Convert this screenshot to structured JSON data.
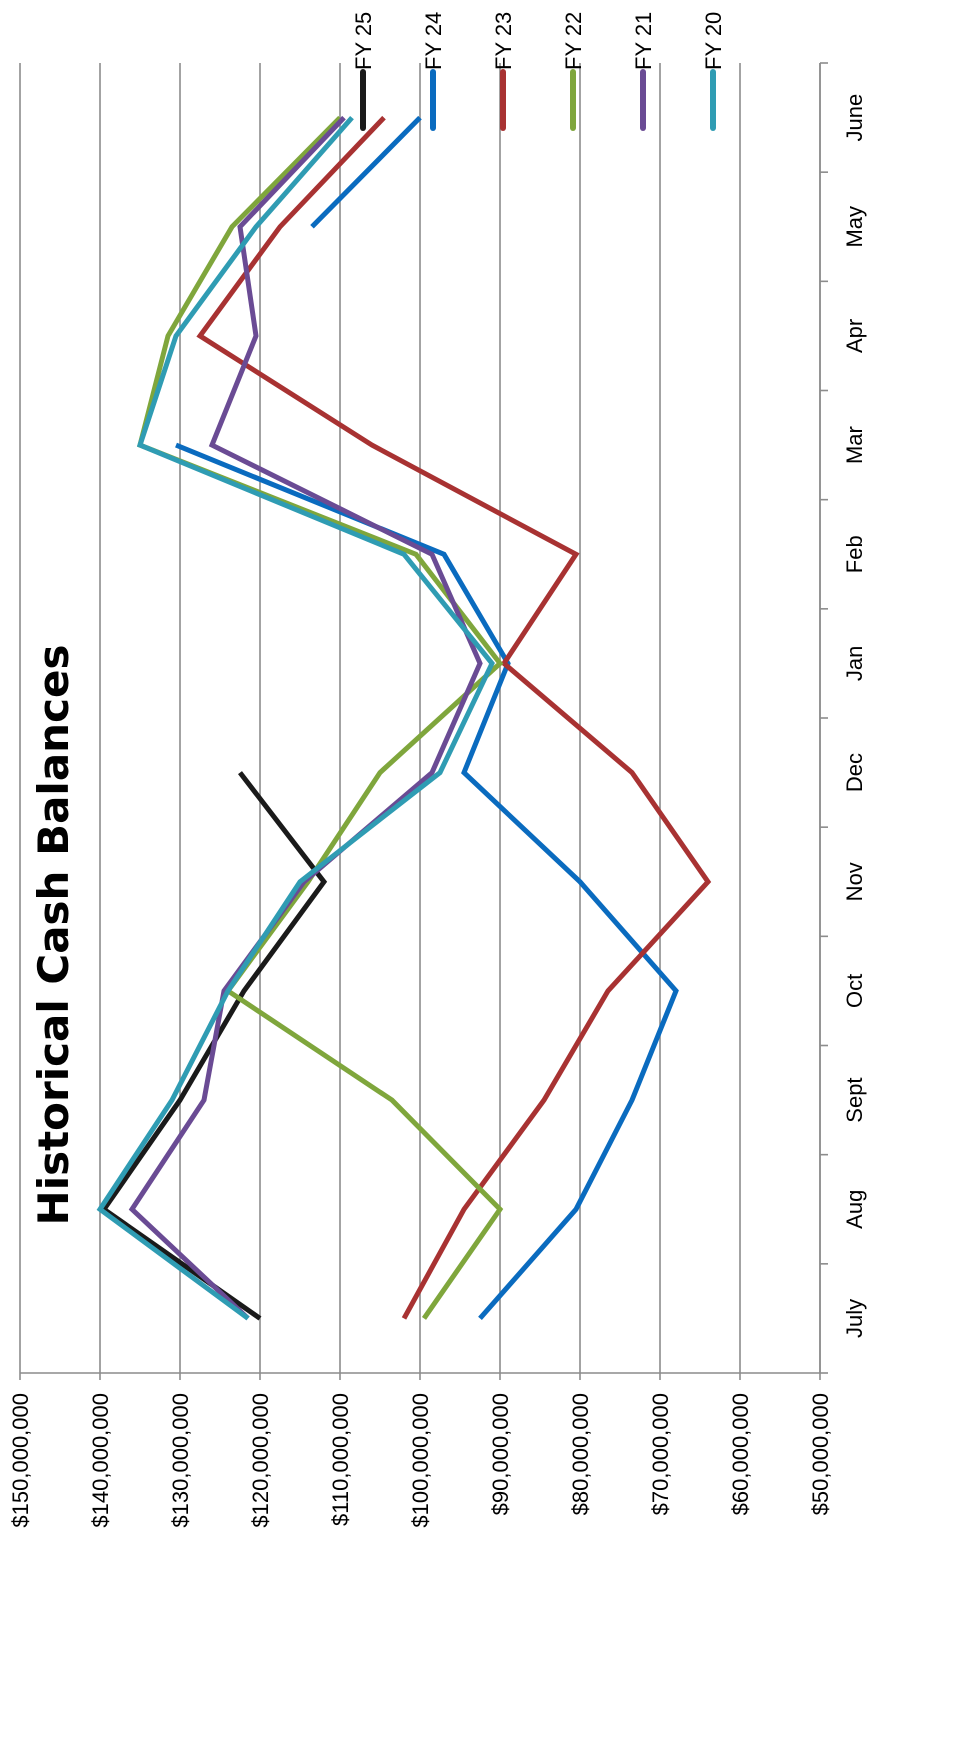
{
  "chart_data": {
    "type": "line",
    "title": "Historical Cash Balances",
    "xlabel": "",
    "ylabel": "",
    "categories": [
      "July",
      "Aug",
      "Sept",
      "Oct",
      "Nov",
      "Dec",
      "Jan",
      "Feb",
      "Mar",
      "Apr",
      "May",
      "June"
    ],
    "ylim": [
      50000000,
      150000000
    ],
    "yticks": [
      {
        "value": 50000000,
        "label": "$50,000,000"
      },
      {
        "value": 60000000,
        "label": "$60,000,000"
      },
      {
        "value": 70000000,
        "label": "$70,000,000"
      },
      {
        "value": 80000000,
        "label": "$80,000,000"
      },
      {
        "value": 90000000,
        "label": "$90,000,000"
      },
      {
        "value": 100000000,
        "label": "$100,000,000"
      },
      {
        "value": 110000000,
        "label": "$110,000,000"
      },
      {
        "value": 120000000,
        "label": "$120,000,000"
      },
      {
        "value": 130000000,
        "label": "$130,000,000"
      },
      {
        "value": 140000000,
        "label": "$140,000,000"
      },
      {
        "value": 150000000,
        "label": "$150,000,000"
      }
    ],
    "grid": true,
    "orientation": "rotated 90 degrees counter-clockwise",
    "legend_position": "right",
    "series": [
      {
        "name": "FY 25",
        "color": "#1a1a1a",
        "values": [
          120000000,
          139500000,
          130000000,
          122000000,
          112000000,
          122500000,
          null,
          null,
          null,
          null,
          null,
          null
        ]
      },
      {
        "name": "FY 24",
        "color": "#0a6bbf",
        "values": [
          92500000,
          80500000,
          73500000,
          68000000,
          80000000,
          94500000,
          89000000,
          97000000,
          130500000,
          null,
          113500000,
          100000000
        ]
      },
      {
        "name": "FY 23",
        "color": "#a83232",
        "values": [
          102000000,
          94500000,
          84500000,
          76500000,
          64000000,
          73500000,
          89500000,
          80500000,
          106000000,
          127500000,
          117500000,
          104500000
        ]
      },
      {
        "name": "FY 22",
        "color": "#7fa63c",
        "values": [
          99500000,
          90000000,
          103500000,
          124000000,
          114000000,
          105000000,
          90000000,
          100500000,
          135000000,
          131500000,
          123500000,
          110000000
        ]
      },
      {
        "name": "FY 21",
        "color": "#6a4b94",
        "values": [
          121500000,
          136000000,
          127000000,
          124500000,
          114500000,
          98500000,
          92500000,
          98500000,
          126000000,
          120500000,
          122500000,
          109500000
        ]
      },
      {
        "name": "FY 20",
        "color": "#2f9cb3",
        "values": [
          121500000,
          140000000,
          131000000,
          124000000,
          115000000,
          97500000,
          91000000,
          102000000,
          135000000,
          130500000,
          120500000,
          108500000
        ]
      }
    ]
  }
}
